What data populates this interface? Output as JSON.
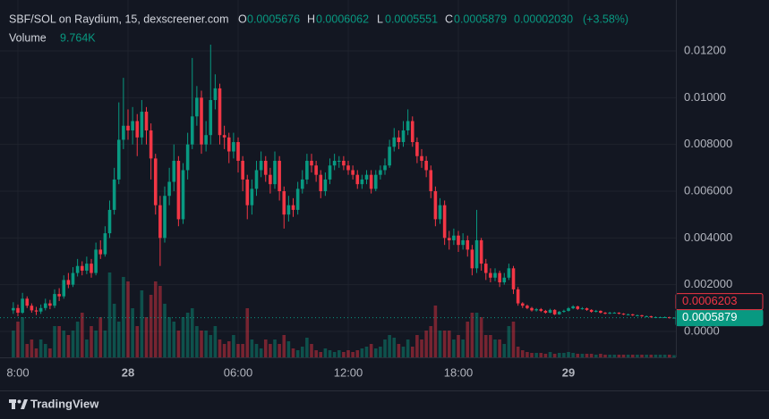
{
  "header": {
    "symbol": "SBF/SOL on Raydium, 15, dexscreener.com",
    "o_label": "O",
    "h_label": "H",
    "l_label": "L",
    "c_label": "C",
    "change": "0.00002030",
    "change_pct": "(+3.58%)",
    "volume_name": "Volume",
    "volume_label": "9.764K",
    "brand": "TradingView"
  },
  "chart_data": {
    "type": "candlestick",
    "up_color": "#089981",
    "down_color": "#f23645",
    "grid": true,
    "ylim": [
      -0.00111,
      0.01418
    ],
    "yticks": [
      {
        "value": 0.012,
        "label": "0.01200"
      },
      {
        "value": 0.01,
        "label": "0.01000"
      },
      {
        "value": 0.008,
        "label": "0.008000"
      },
      {
        "value": 0.006,
        "label": "0.006000"
      },
      {
        "value": 0.004,
        "label": "0.004000"
      },
      {
        "value": 0.002,
        "label": "0.002000"
      },
      {
        "value": 0,
        "label": "0.0000"
      }
    ],
    "xlim": [
      -2.902,
      144.41
    ],
    "xticks": [
      {
        "value": 1,
        "label": "8:00"
      },
      {
        "value": 25,
        "label": "28"
      },
      {
        "value": 49,
        "label": "06:00"
      },
      {
        "value": 73,
        "label": "12:00"
      },
      {
        "value": 97,
        "label": "18:00"
      },
      {
        "value": 121,
        "label": "29"
      }
    ],
    "price_lines": [
      {
        "value": 0.0006203,
        "color": "#f23645",
        "style": "outline"
      },
      {
        "value": 0.0005879,
        "color": "#089981",
        "style": "filled"
      }
    ],
    "open": [
      0.0009,
      0.001,
      0.0008,
      0.0014,
      0.0011,
      0.0009,
      0.00085,
      0.001,
      0.0012,
      0.0011,
      0.0016,
      0.0015,
      0.0022,
      0.002,
      0.0025,
      0.0028,
      0.0026,
      0.0029,
      0.0025,
      0.0035,
      0.0033,
      0.0042,
      0.0052,
      0.0065,
      0.0082,
      0.0088,
      0.0086,
      0.009,
      0.0083,
      0.0094,
      0.0086,
      0.0074,
      0.0054,
      0.004,
      0.0058,
      0.0064,
      0.0073,
      0.0048,
      0.0069,
      0.008,
      0.0092,
      0.01,
      0.008,
      0.0084,
      0.0099,
      0.0104,
      0.0084,
      0.0083,
      0.0077,
      0.0081,
      0.0073,
      0.0065,
      0.0054,
      0.0061,
      0.0069,
      0.0073,
      0.0067,
      0.0063,
      0.0073,
      0.006,
      0.005,
      0.0054,
      0.0052,
      0.0061,
      0.0065,
      0.0073,
      0.0071,
      0.0067,
      0.006,
      0.0065,
      0.0071,
      0.0073,
      0.0073,
      0.0071,
      0.0069,
      0.0067,
      0.0063,
      0.0065,
      0.0067,
      0.0061,
      0.0067,
      0.0069,
      0.0071,
      0.0079,
      0.0083,
      0.0081,
      0.0086,
      0.009,
      0.0081,
      0.0075,
      0.0073,
      0.0069,
      0.006,
      0.0048,
      0.0054,
      0.004,
      0.0039,
      0.0041,
      0.0037,
      0.0039,
      0.0035,
      0.0027,
      0.0039,
      0.0029,
      0.0025,
      0.0023,
      0.0025,
      0.0021,
      0.0023,
      0.0027,
      0.0018,
      0.0012,
      0.0011,
      0.001,
      0.0009,
      0.00095,
      0.00088,
      0.0008,
      0.00092,
      0.00073,
      0.00084,
      0.00088,
      0.00099,
      0.00107,
      0.00096,
      0.00099,
      0.00092,
      0.00084,
      0.00088,
      0.0008,
      0.00076,
      0.0008,
      0.0008,
      0.00076,
      0.00073,
      0.00073,
      0.00069,
      0.00069,
      0.00065,
      0.00065,
      0.00061,
      0.00061,
      0.00061,
      0.00061,
      0.0005676
    ],
    "high": [
      0.00125,
      0.00115,
      0.00165,
      0.0015,
      0.0012,
      0.00105,
      0.00115,
      0.0014,
      0.00135,
      0.0018,
      0.00185,
      0.0024,
      0.0025,
      0.00275,
      0.0031,
      0.003,
      0.0032,
      0.0031,
      0.0038,
      0.0039,
      0.0045,
      0.0056,
      0.007,
      0.0098,
      0.01085,
      0.0095,
      0.0096,
      0.0093,
      0.0099,
      0.0096,
      0.0089,
      0.0076,
      0.0058,
      0.0062,
      0.007,
      0.008,
      0.0075,
      0.0072,
      0.0085,
      0.0117,
      0.0105,
      0.0103,
      0.009,
      0.01227,
      0.011,
      0.0106,
      0.0088,
      0.0085,
      0.0085,
      0.0083,
      0.0075,
      0.0067,
      0.0065,
      0.0073,
      0.0077,
      0.0075,
      0.007,
      0.0077,
      0.0075,
      0.0062,
      0.0058,
      0.0057,
      0.0064,
      0.0069,
      0.0076,
      0.0076,
      0.0073,
      0.0069,
      0.0068,
      0.0074,
      0.0076,
      0.0075,
      0.0075,
      0.0073,
      0.0071,
      0.0069,
      0.0067,
      0.0069,
      0.0069,
      0.0069,
      0.0071,
      0.0074,
      0.0082,
      0.0087,
      0.0086,
      0.009,
      0.0095,
      0.0092,
      0.0083,
      0.0078,
      0.0075,
      0.0071,
      0.0062,
      0.0057,
      0.0056,
      0.0043,
      0.0044,
      0.0043,
      0.0042,
      0.0041,
      0.0037,
      0.0052,
      0.004,
      0.0031,
      0.0027,
      0.0027,
      0.0026,
      0.0025,
      0.0029,
      0.0028,
      0.0019,
      0.00125,
      0.00115,
      0.00105,
      0.001,
      0.001,
      0.00092,
      0.00097,
      0.00095,
      0.00088,
      0.00093,
      0.00104,
      0.00112,
      0.0011,
      0.00104,
      0.00102,
      0.00095,
      0.00092,
      0.0009,
      0.00083,
      0.00084,
      0.00083,
      0.00082,
      0.00078,
      0.00076,
      0.00075,
      0.00072,
      0.00071,
      0.00068,
      0.00067,
      0.00064,
      0.00063,
      0.00064,
      0.00063,
      0.0006062
    ],
    "low": [
      0.00075,
      0.00065,
      0.00075,
      0.001,
      0.0008,
      0.0007,
      0.00075,
      0.0009,
      0.00095,
      0.001,
      0.0013,
      0.0014,
      0.00185,
      0.0019,
      0.00235,
      0.0024,
      0.00245,
      0.0023,
      0.0024,
      0.0031,
      0.0032,
      0.004,
      0.005,
      0.0063,
      0.0078,
      0.0082,
      0.008,
      0.0075,
      0.008,
      0.008,
      0.0065,
      0.005,
      0.0028,
      0.0038,
      0.0054,
      0.006,
      0.0045,
      0.0046,
      0.0065,
      0.0078,
      0.0088,
      0.0076,
      0.0077,
      0.008,
      0.0095,
      0.008,
      0.0078,
      0.0072,
      0.0074,
      0.0068,
      0.006,
      0.0048,
      0.005,
      0.0058,
      0.0066,
      0.0064,
      0.0059,
      0.0061,
      0.0056,
      0.0044,
      0.0047,
      0.0049,
      0.005,
      0.0059,
      0.0063,
      0.0068,
      0.0064,
      0.0057,
      0.0058,
      0.0063,
      0.0069,
      0.007,
      0.0069,
      0.0067,
      0.0065,
      0.0061,
      0.0061,
      0.0063,
      0.0059,
      0.006,
      0.0065,
      0.0067,
      0.007,
      0.0077,
      0.0078,
      0.0079,
      0.0084,
      0.0079,
      0.0072,
      0.007,
      0.0066,
      0.0057,
      0.0045,
      0.0046,
      0.0037,
      0.0035,
      0.0037,
      0.0034,
      0.0035,
      0.0032,
      0.0024,
      0.0025,
      0.0026,
      0.0022,
      0.0021,
      0.00215,
      0.0019,
      0.002,
      0.0022,
      0.0016,
      0.0011,
      0.001,
      0.00095,
      0.00085,
      0.00085,
      0.00083,
      0.00076,
      0.00078,
      0.0007,
      0.00071,
      0.0008,
      0.00085,
      0.00095,
      0.00092,
      0.00093,
      0.00088,
      0.0008,
      0.00081,
      0.00077,
      0.00073,
      0.00074,
      0.00077,
      0.00073,
      0.0007,
      0.0007,
      0.00066,
      0.00066,
      0.00062,
      0.00062,
      0.00058,
      0.00058,
      0.00058,
      0.00059,
      0.00055,
      0.0005551
    ],
    "close": [
      0.001,
      0.0008,
      0.0014,
      0.0011,
      0.0009,
      0.00085,
      0.001,
      0.0012,
      0.0011,
      0.0016,
      0.0015,
      0.0022,
      0.002,
      0.0025,
      0.0028,
      0.0026,
      0.0029,
      0.0025,
      0.0035,
      0.0033,
      0.0042,
      0.0052,
      0.0065,
      0.0082,
      0.0088,
      0.0086,
      0.009,
      0.0083,
      0.0094,
      0.0086,
      0.0074,
      0.0054,
      0.004,
      0.0058,
      0.0064,
      0.0073,
      0.0048,
      0.0069,
      0.008,
      0.0092,
      0.01,
      0.008,
      0.0084,
      0.0099,
      0.0104,
      0.0084,
      0.0083,
      0.0077,
      0.0081,
      0.0073,
      0.0065,
      0.0054,
      0.0061,
      0.0069,
      0.0073,
      0.0067,
      0.0063,
      0.0073,
      0.006,
      0.005,
      0.0054,
      0.0052,
      0.0061,
      0.0065,
      0.0073,
      0.0071,
      0.0067,
      0.006,
      0.0065,
      0.0071,
      0.0073,
      0.0073,
      0.0071,
      0.0069,
      0.0067,
      0.0063,
      0.0065,
      0.0067,
      0.0061,
      0.0067,
      0.0069,
      0.0071,
      0.0079,
      0.0083,
      0.0081,
      0.0086,
      0.009,
      0.0081,
      0.0075,
      0.0073,
      0.0069,
      0.006,
      0.0048,
      0.0054,
      0.004,
      0.0039,
      0.0041,
      0.0037,
      0.0039,
      0.0035,
      0.0027,
      0.0039,
      0.0029,
      0.0025,
      0.0023,
      0.0025,
      0.0021,
      0.0023,
      0.0027,
      0.0018,
      0.0012,
      0.0011,
      0.001,
      0.0009,
      0.00095,
      0.00088,
      0.0008,
      0.00092,
      0.00073,
      0.00084,
      0.00088,
      0.00099,
      0.00107,
      0.00096,
      0.00099,
      0.00092,
      0.00084,
      0.00088,
      0.0008,
      0.00076,
      0.0008,
      0.0008,
      0.00076,
      0.00073,
      0.00073,
      0.00069,
      0.00069,
      0.00065,
      0.00065,
      0.00061,
      0.00061,
      0.00061,
      0.00061,
      0.0005676,
      0.0005879
    ],
    "volume": [
      120000,
      160000,
      180000,
      60000,
      80000,
      40000,
      80000,
      60000,
      40000,
      140000,
      140000,
      120000,
      100000,
      120000,
      160000,
      200000,
      80000,
      140000,
      120000,
      180000,
      120000,
      380000,
      240000,
      160000,
      360000,
      340000,
      220000,
      140000,
      300000,
      180000,
      280000,
      340000,
      320000,
      240000,
      180000,
      160000,
      120000,
      180000,
      200000,
      220000,
      140000,
      120000,
      120000,
      100000,
      140000,
      80000,
      60000,
      72000,
      100000,
      60000,
      60000,
      220000,
      80000,
      60000,
      40000,
      80000,
      60000,
      80000,
      60000,
      100000,
      72000,
      40000,
      32000,
      48000,
      88000,
      60000,
      32000,
      24000,
      40000,
      32000,
      24000,
      32000,
      24000,
      32000,
      24000,
      32000,
      40000,
      48000,
      60000,
      40000,
      48000,
      80000,
      100000,
      88000,
      60000,
      48000,
      80000,
      48000,
      100000,
      80000,
      120000,
      140000,
      232000,
      120000,
      120000,
      120000,
      80000,
      100000,
      80000,
      160000,
      200000,
      200000,
      180000,
      100000,
      100000,
      80000,
      80000,
      60000,
      140000,
      160000,
      48000,
      32000,
      24000,
      20000,
      20000,
      20000,
      16000,
      24000,
      16000,
      20000,
      20000,
      24000,
      20000,
      16000,
      16000,
      16000,
      16000,
      12000,
      16000,
      12000,
      12000,
      12000,
      12000,
      12000,
      12000,
      12000,
      12000,
      12000,
      12000,
      12000,
      12000,
      12000,
      12000,
      12000,
      9764
    ]
  }
}
